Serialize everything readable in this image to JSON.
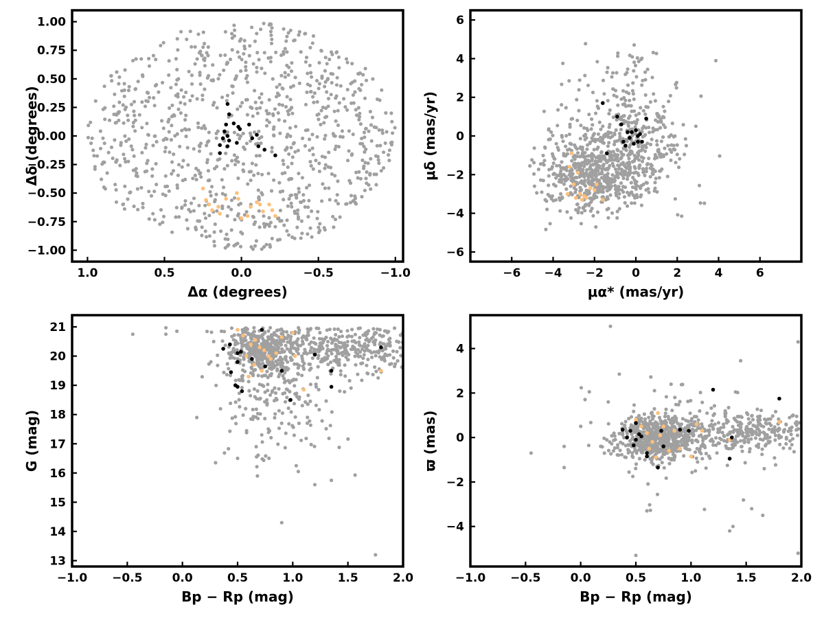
{
  "chart_data": [
    {
      "id": "sky",
      "type": "scatter",
      "xlabel": "Δα (degrees)",
      "ylabel": "Δδ (degrees)",
      "xlim": [
        1.1,
        -1.05
      ],
      "ylim": [
        -1.1,
        1.1
      ],
      "xticks": [
        1.0,
        0.5,
        0.0,
        -0.5,
        -1.0
      ],
      "xtick_labels": [
        "1.0",
        "0.5",
        "0.0",
        "−0.5",
        "−1.0"
      ],
      "yticks": [
        1.0,
        0.75,
        0.5,
        0.25,
        0.0,
        -0.25,
        -0.5,
        -0.75,
        -1.0
      ],
      "ytick_labels": [
        "1.00",
        "0.75",
        "0.50",
        "0.25",
        "0.00",
        "−0.25",
        "−0.50",
        "−0.75",
        "−1.00"
      ],
      "series": [
        {
          "role": "field",
          "color": "#a0a0a0",
          "distribution": "uniform-disk",
          "center": [
            0,
            0
          ],
          "radius": 1.0,
          "count": 950
        },
        {
          "role": "highlight-orange",
          "color": "#fdbf7a",
          "points": [
            [
              0.25,
              -0.46
            ],
            [
              0.23,
              -0.56
            ],
            [
              0.21,
              -0.6
            ],
            [
              0.19,
              -0.65
            ],
            [
              0.15,
              -0.62
            ],
            [
              0.14,
              -0.68
            ],
            [
              0.1,
              -0.55
            ],
            [
              0.03,
              -0.5
            ],
            [
              0.02,
              -0.55
            ],
            [
              0.0,
              -0.72
            ],
            [
              -0.04,
              -0.7
            ],
            [
              -0.06,
              -0.62
            ],
            [
              -0.1,
              -0.58
            ],
            [
              -0.12,
              -0.6
            ],
            [
              -0.14,
              -0.66
            ],
            [
              -0.18,
              -0.6
            ],
            [
              -0.2,
              -0.65
            ],
            [
              -0.22,
              -0.7
            ]
          ]
        },
        {
          "role": "highlight-black",
          "color": "#000000",
          "points": [
            [
              0.09,
              0.28
            ],
            [
              0.08,
              0.19
            ],
            [
              0.1,
              0.1
            ],
            [
              0.11,
              0.04
            ],
            [
              0.09,
              0.0
            ],
            [
              0.12,
              -0.02
            ],
            [
              0.08,
              -0.04
            ],
            [
              0.14,
              -0.08
            ],
            [
              0.14,
              -0.15
            ],
            [
              0.09,
              -0.09
            ],
            [
              0.05,
              0.11
            ],
            [
              0.02,
              0.08
            ],
            [
              0.01,
              0.06
            ],
            [
              -0.05,
              0.1
            ],
            [
              -0.07,
              -0.02
            ],
            [
              -0.1,
              0.01
            ],
            [
              -0.11,
              -0.09
            ],
            [
              -0.15,
              -0.12
            ],
            [
              -0.22,
              -0.17
            ],
            [
              0.03,
              -0.06
            ]
          ]
        }
      ]
    },
    {
      "id": "proper-motion",
      "type": "scatter",
      "xlabel": "μα* (mas/yr)",
      "ylabel": "μδ (mas/yr)",
      "xlim": [
        -8,
        8
      ],
      "ylim": [
        -6.5,
        6.5
      ],
      "xticks": [
        -6,
        -4,
        -2,
        0,
        2,
        4,
        6
      ],
      "xtick_labels": [
        "−6",
        "−4",
        "−2",
        "0",
        "2",
        "4",
        "6"
      ],
      "yticks": [
        6,
        4,
        2,
        0,
        -2,
        -4,
        -6
      ],
      "ytick_labels": [
        "6",
        "4",
        "2",
        "0",
        "−2",
        "−4",
        "−6"
      ],
      "series": [
        {
          "role": "field",
          "color": "#a0a0a0",
          "distribution": "clusters",
          "count": 950,
          "clusters": [
            {
              "center": [
                -2.0,
                -2.0
              ],
              "spread": [
                1.3,
                1.0
              ],
              "weight": 0.55
            },
            {
              "center": [
                0.0,
                -0.3
              ],
              "spread": [
                0.9,
                1.6
              ],
              "weight": 0.25
            },
            {
              "center": [
                -1.0,
                0.5
              ],
              "spread": [
                2.2,
                2.3
              ],
              "weight": 0.2
            }
          ],
          "bounds": {
            "x": [
              -5.2,
              4.6
            ],
            "y": [
              -4.9,
              4.8
            ]
          }
        },
        {
          "role": "highlight-orange",
          "color": "#fdbf7a",
          "points": [
            [
              -3.2,
              -1.6
            ],
            [
              -3.0,
              -2.5
            ],
            [
              -2.9,
              -3.2
            ],
            [
              -2.7,
              -3.0
            ],
            [
              -2.6,
              -3.3
            ],
            [
              -2.4,
              -3.2
            ],
            [
              -3.3,
              -3.0
            ],
            [
              -2.2,
              -2.7
            ],
            [
              -2.0,
              -2.8
            ],
            [
              -1.9,
              -2.5
            ],
            [
              -1.6,
              -3.3
            ],
            [
              -2.8,
              -1.9
            ],
            [
              -3.1,
              -0.9
            ],
            [
              -2.5,
              -3.1
            ]
          ]
        },
        {
          "role": "highlight-black",
          "color": "#000000",
          "points": [
            [
              -1.6,
              1.7
            ],
            [
              -0.9,
              1.0
            ],
            [
              -0.7,
              0.6
            ],
            [
              0.5,
              0.9
            ],
            [
              -0.4,
              0.2
            ],
            [
              -0.2,
              0.2
            ],
            [
              0.0,
              0.3
            ],
            [
              0.2,
              0.1
            ],
            [
              -0.3,
              -0.1
            ],
            [
              0.1,
              -0.3
            ],
            [
              0.3,
              -0.3
            ],
            [
              -0.6,
              -0.3
            ],
            [
              -0.1,
              -0.4
            ],
            [
              -1.4,
              -0.9
            ],
            [
              -0.5,
              -0.5
            ],
            [
              0.1,
              0.0
            ]
          ]
        }
      ]
    },
    {
      "id": "cmd",
      "type": "scatter",
      "xlabel": "Bp − Rp (mag)",
      "ylabel": "G (mag)",
      "xlim": [
        -1.0,
        2.0
      ],
      "ylim": [
        12.8,
        21.4
      ],
      "y_inverted": false,
      "xticks": [
        -1.0,
        -0.5,
        0.0,
        0.5,
        1.0,
        1.5,
        2.0
      ],
      "xtick_labels": [
        "−1.0",
        "−0.5",
        "0.0",
        "0.5",
        "1.0",
        "1.5",
        "2.0"
      ],
      "yticks": [
        21,
        20,
        19,
        18,
        17,
        16,
        15,
        14,
        13
      ],
      "ytick_labels": [
        "21",
        "20",
        "19",
        "18",
        "17",
        "16",
        "15",
        "14",
        "13"
      ],
      "series": [
        {
          "role": "field",
          "color": "#a0a0a0",
          "distribution": "cmd",
          "count": 900,
          "clusters": [
            {
              "center": [
                0.72,
                20.3
              ],
              "spread": [
                0.18,
                0.45
              ],
              "weight": 0.45
            },
            {
              "center": [
                1.55,
                20.3
              ],
              "spread": [
                0.35,
                0.45
              ],
              "weight": 0.35
            },
            {
              "center": [
                0.9,
                18.6
              ],
              "spread": [
                0.3,
                1.0
              ],
              "weight": 0.2
            }
          ],
          "bounds": {
            "x": [
              -1.0,
              2.0
            ],
            "y": [
              13.2,
              20.97
            ]
          },
          "extra_points": [
            [
              -0.45,
              20.75
            ],
            [
              -0.15,
              20.97
            ],
            [
              -0.15,
              20.75
            ],
            [
              -0.05,
              20.85
            ],
            [
              0.13,
              17.9
            ],
            [
              0.3,
              16.35
            ],
            [
              0.9,
              14.3
            ],
            [
              1.75,
              13.2
            ],
            [
              1.2,
              15.6
            ],
            [
              1.35,
              15.75
            ],
            [
              1.05,
              16.05
            ],
            [
              0.68,
              15.9
            ],
            [
              0.5,
              16.5
            ]
          ]
        },
        {
          "role": "highlight-orange",
          "color": "#fdbf7a",
          "points": [
            [
              0.5,
              20.9
            ],
            [
              0.55,
              20.7
            ],
            [
              0.62,
              20.4
            ],
            [
              0.66,
              20.55
            ],
            [
              0.7,
              20.3
            ],
            [
              0.74,
              20.2
            ],
            [
              0.78,
              20.0
            ],
            [
              0.8,
              19.9
            ],
            [
              0.65,
              19.7
            ],
            [
              0.6,
              19.3
            ],
            [
              0.72,
              19.5
            ],
            [
              0.85,
              20.1
            ],
            [
              0.9,
              20.65
            ],
            [
              1.0,
              20.8
            ],
            [
              1.02,
              20.0
            ],
            [
              1.1,
              18.85
            ],
            [
              1.8,
              19.5
            ],
            [
              0.58,
              20.0
            ]
          ]
        },
        {
          "role": "highlight-black",
          "color": "#000000",
          "points": [
            [
              0.72,
              20.9
            ],
            [
              0.37,
              20.25
            ],
            [
              0.43,
              20.4
            ],
            [
              0.5,
              20.1
            ],
            [
              0.5,
              19.8
            ],
            [
              0.44,
              19.45
            ],
            [
              0.48,
              19.0
            ],
            [
              0.5,
              18.95
            ],
            [
              0.54,
              18.8
            ],
            [
              0.63,
              19.9
            ],
            [
              0.75,
              19.65
            ],
            [
              0.9,
              19.5
            ],
            [
              0.98,
              18.5
            ],
            [
              1.2,
              20.05
            ],
            [
              1.35,
              19.5
            ],
            [
              1.35,
              18.95
            ],
            [
              1.8,
              20.3
            ],
            [
              0.53,
              20.15
            ]
          ]
        }
      ]
    },
    {
      "id": "parallax",
      "type": "scatter",
      "xlabel": "Bp − Rp (mag)",
      "ylabel": "ϖ (mas)",
      "xlim": [
        -1.0,
        2.0
      ],
      "ylim": [
        -5.8,
        5.5
      ],
      "xticks": [
        -1.0,
        -0.5,
        0.0,
        0.5,
        1.0,
        1.5,
        2.0
      ],
      "xtick_labels": [
        "−1.0",
        "−0.5",
        "0.0",
        "0.5",
        "1.0",
        "1.5",
        "2.0"
      ],
      "yticks": [
        4,
        2,
        0,
        -2,
        -4
      ],
      "ytick_labels": [
        "4",
        "2",
        "0",
        "−2",
        "−4"
      ],
      "series": [
        {
          "role": "field",
          "color": "#a0a0a0",
          "distribution": "parallax",
          "count": 950,
          "clusters": [
            {
              "center": [
                0.7,
                0.0
              ],
              "spread": [
                0.2,
                0.5
              ],
              "weight": 0.55
            },
            {
              "center": [
                1.55,
                0.25
              ],
              "spread": [
                0.3,
                0.45
              ],
              "weight": 0.3
            },
            {
              "center": [
                0.9,
                0.0
              ],
              "spread": [
                0.35,
                1.3
              ],
              "weight": 0.15
            }
          ],
          "bounds": {
            "x": [
              -1.0,
              2.0
            ],
            "y": [
              -5.4,
              5.1
            ]
          },
          "extra_points": [
            [
              -0.45,
              -0.7
            ],
            [
              -0.15,
              -1.35
            ],
            [
              -0.15,
              -0.4
            ],
            [
              0.0,
              0.5
            ],
            [
              0.27,
              5.0
            ],
            [
              0.5,
              -5.3
            ],
            [
              0.6,
              -3.3
            ],
            [
              1.97,
              -5.2
            ],
            [
              1.97,
              4.3
            ],
            [
              1.35,
              -4.2
            ],
            [
              1.38,
              -4.0
            ],
            [
              1.55,
              -3.2
            ],
            [
              1.65,
              -3.5
            ],
            [
              0.35,
              2.85
            ],
            [
              0.25,
              1.6
            ],
            [
              1.45,
              3.45
            ]
          ]
        },
        {
          "role": "highlight-orange",
          "color": "#fdbf7a",
          "points": [
            [
              0.5,
              0.8
            ],
            [
              0.55,
              0.5
            ],
            [
              0.6,
              0.2
            ],
            [
              0.65,
              -0.2
            ],
            [
              0.7,
              1.1
            ],
            [
              0.72,
              0.1
            ],
            [
              0.75,
              0.5
            ],
            [
              0.8,
              -0.6
            ],
            [
              0.85,
              0.3
            ],
            [
              0.9,
              -0.5
            ],
            [
              1.0,
              -0.85
            ],
            [
              1.05,
              0.6
            ],
            [
              1.1,
              0.3
            ],
            [
              1.35,
              -0.1
            ],
            [
              1.8,
              0.7
            ],
            [
              0.62,
              -0.5
            ],
            [
              0.68,
              -0.9
            ]
          ]
        },
        {
          "role": "highlight-black",
          "color": "#000000",
          "points": [
            [
              0.38,
              0.35
            ],
            [
              0.45,
              0.3
            ],
            [
              0.42,
              0.0
            ],
            [
              0.48,
              -0.35
            ],
            [
              0.5,
              -0.1
            ],
            [
              0.5,
              0.65
            ],
            [
              0.53,
              0.15
            ],
            [
              0.55,
              0.05
            ],
            [
              0.6,
              -0.7
            ],
            [
              0.6,
              -0.85
            ],
            [
              0.7,
              -1.35
            ],
            [
              0.73,
              0.3
            ],
            [
              0.75,
              -0.4
            ],
            [
              0.9,
              0.35
            ],
            [
              0.98,
              0.3
            ],
            [
              1.2,
              2.15
            ],
            [
              1.35,
              -0.95
            ],
            [
              1.37,
              0.0
            ],
            [
              1.8,
              1.75
            ]
          ]
        }
      ]
    }
  ]
}
